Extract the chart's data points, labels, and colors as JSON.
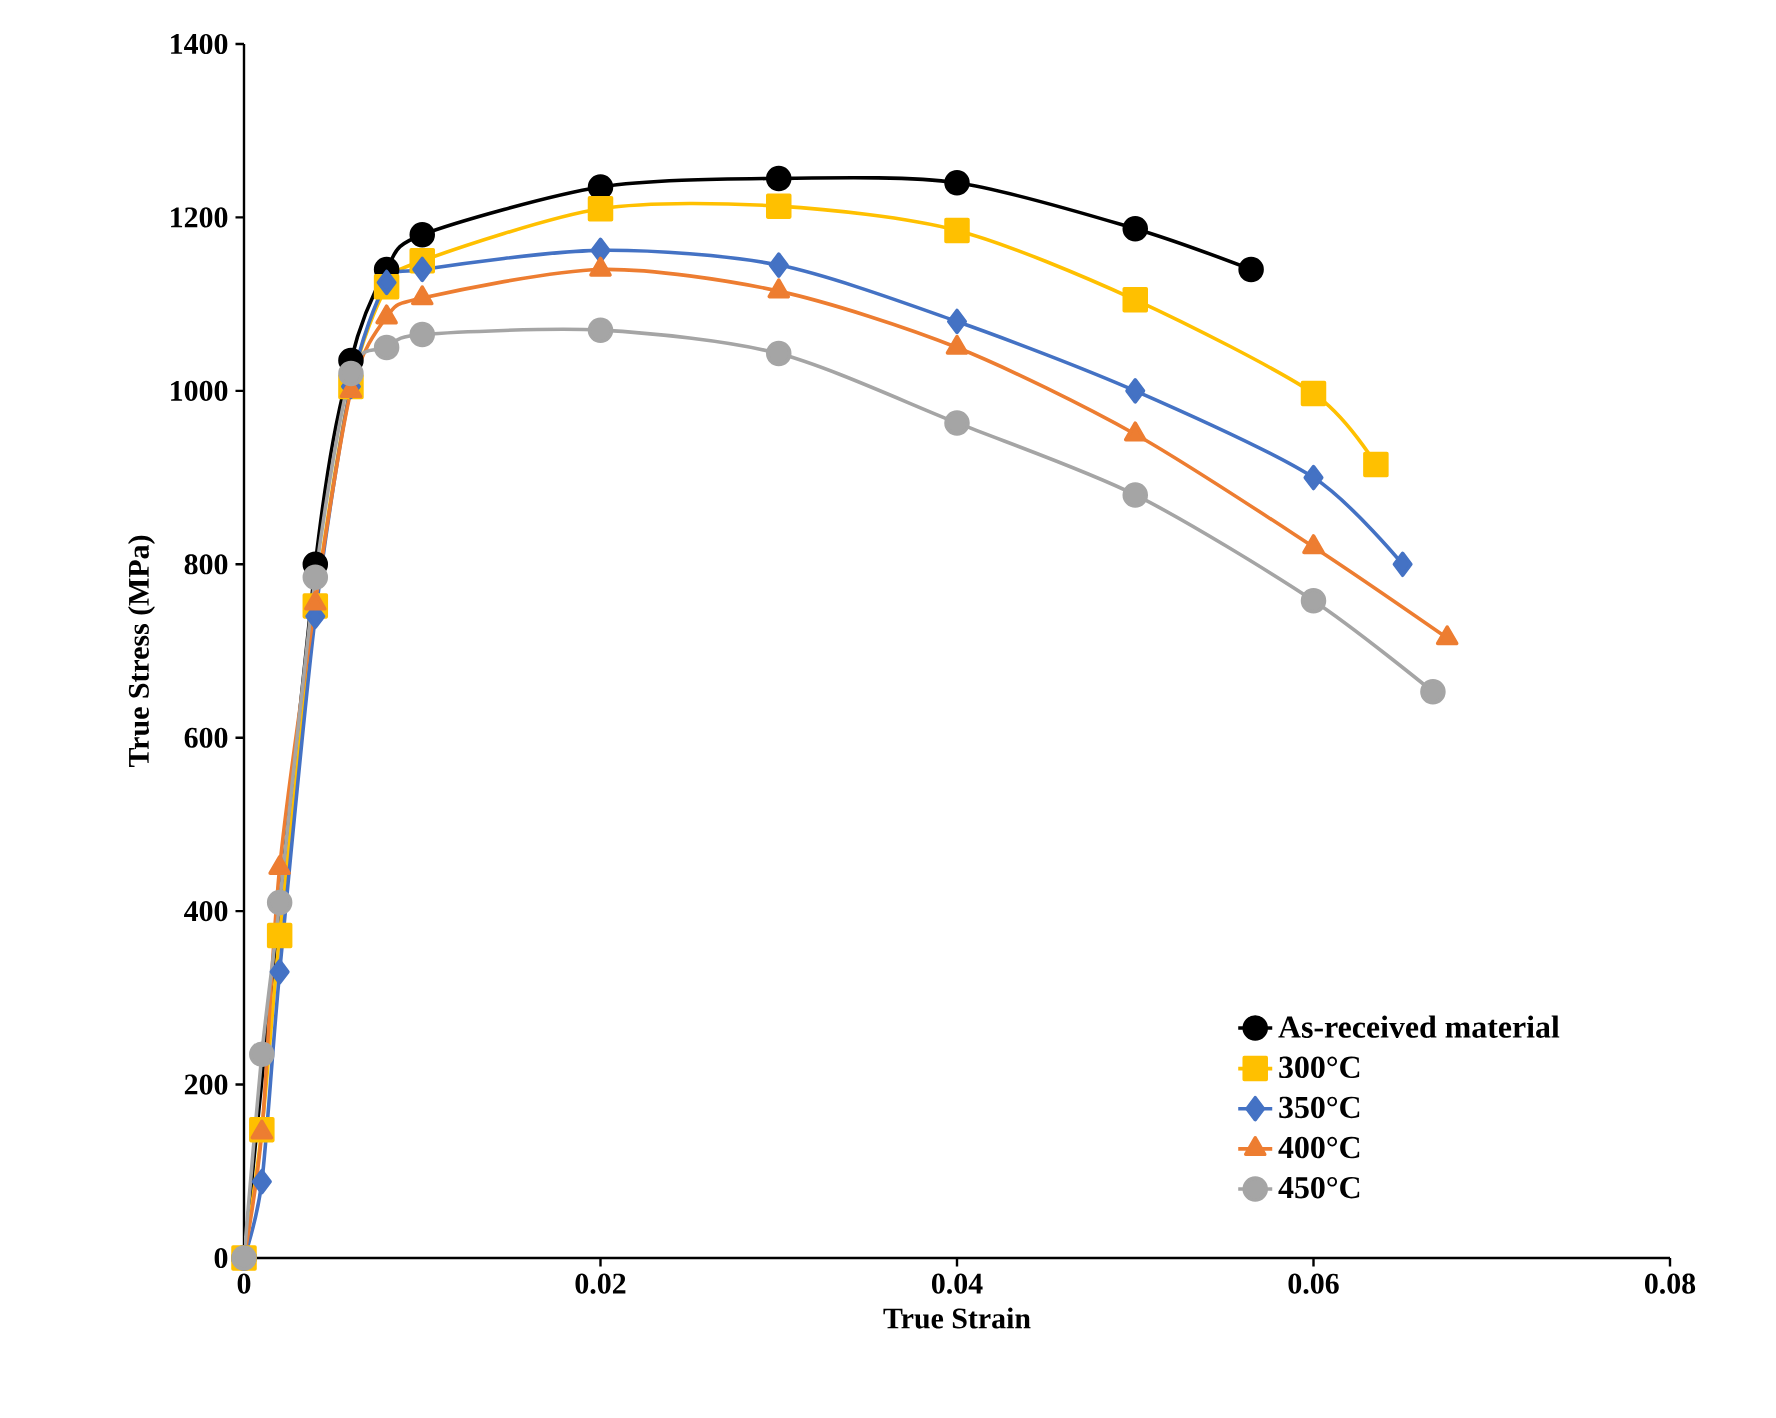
{
  "chart_data": {
    "type": "line",
    "xlabel": "True Strain",
    "ylabel": "True Stress (MPa)",
    "xlim": [
      0,
      0.08
    ],
    "ylim": [
      0,
      1400
    ],
    "xticks": [
      0,
      0.02,
      0.04,
      0.06,
      0.08
    ],
    "yticks": [
      0,
      200,
      400,
      600,
      800,
      1000,
      1200,
      1400
    ],
    "grid": false,
    "legend": "bottom right",
    "line_style": "solid",
    "series": [
      {
        "name": "As-received material",
        "color": "#000000",
        "marker": "circle",
        "x": [
          0,
          0.002,
          0.004,
          0.006,
          0.008,
          0.01,
          0.02,
          0.03,
          0.04,
          0.05,
          0.0565
        ],
        "values": [
          0,
          null,
          800,
          1035,
          1140,
          1180,
          1235,
          1245,
          1240,
          1187,
          1140
        ]
      },
      {
        "name": "300°C",
        "color": "#ffc000",
        "marker": "square",
        "x": [
          0,
          0.001,
          0.002,
          0.004,
          0.006,
          0.008,
          0.01,
          0.02,
          0.03,
          0.04,
          0.05,
          0.06,
          0.0635
        ],
        "values": [
          0,
          148,
          372,
          752,
          1005,
          1120,
          1150,
          1210,
          1213,
          1185,
          1105,
          997,
          915
        ]
      },
      {
        "name": "350°C",
        "color": "#4472c4",
        "marker": "diamond",
        "x": [
          0,
          0.001,
          0.002,
          0.004,
          0.006,
          0.008,
          0.01,
          0.02,
          0.03,
          0.04,
          0.05,
          0.06,
          0.065
        ],
        "values": [
          0,
          88,
          330,
          740,
          1005,
          1125,
          1140,
          1162,
          1145,
          1080,
          1000,
          900,
          800
        ]
      },
      {
        "name": "400°C",
        "color": "#ed7d31",
        "marker": "triangle",
        "x": [
          0,
          0.001,
          0.002,
          0.004,
          0.006,
          0.008,
          0.01,
          0.02,
          0.03,
          0.04,
          0.05,
          0.06,
          0.0675
        ],
        "values": [
          0,
          145,
          450,
          755,
          1000,
          1085,
          1107,
          1140,
          1115,
          1050,
          950,
          820,
          715
        ]
      },
      {
        "name": "450°C",
        "color": "#a5a5a5",
        "marker": "circle",
        "x": [
          0,
          0.001,
          0.002,
          0.004,
          0.006,
          0.008,
          0.01,
          0.02,
          0.03,
          0.04,
          0.05,
          0.06,
          0.0667
        ],
        "values": [
          0,
          235,
          410,
          785,
          1020,
          1050,
          1065,
          1070,
          1043,
          963,
          880,
          758,
          653
        ]
      }
    ]
  }
}
